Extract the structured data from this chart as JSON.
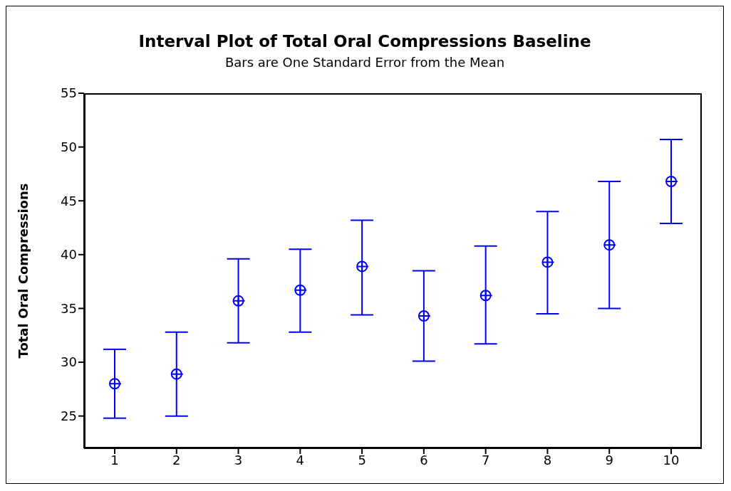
{
  "chart_data": {
    "type": "scatter",
    "title": "Interval Plot of Total Oral Compressions Baseline",
    "subtitle": "Bars are One Standard Error from the Mean",
    "ylabel": "Total Oral Compressions",
    "categories": [
      "1",
      "2",
      "3",
      "4",
      "5",
      "6",
      "7",
      "8",
      "9",
      "10"
    ],
    "values": [
      28.0,
      28.9,
      35.7,
      36.7,
      38.9,
      34.3,
      36.2,
      39.3,
      40.9,
      46.8
    ],
    "errors": [
      [
        24.8,
        31.2
      ],
      [
        25.0,
        32.8
      ],
      [
        31.8,
        39.6
      ],
      [
        32.8,
        40.5
      ],
      [
        34.4,
        43.2
      ],
      [
        30.1,
        38.5
      ],
      [
        31.7,
        40.8
      ],
      [
        34.5,
        44.0
      ],
      [
        35.0,
        46.8
      ],
      [
        42.9,
        50.7
      ]
    ],
    "color": "#0000ff",
    "marker": "cross",
    "grid": false,
    "legend": false,
    "ylim": [
      22,
      55
    ],
    "yticks": [
      25,
      30,
      35,
      40,
      45,
      50,
      55
    ]
  }
}
